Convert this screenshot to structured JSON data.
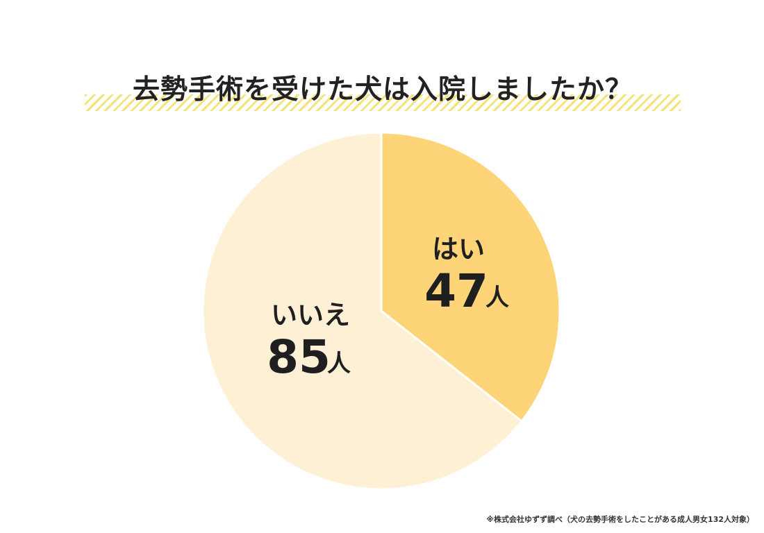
{
  "chart_data": {
    "type": "pie",
    "title": "去勢手術を受けた犬は入院しましたか？",
    "slices": [
      {
        "label": "はい",
        "value": 47,
        "unit": "人",
        "color": "#fed478"
      },
      {
        "label": "いいえ",
        "value": 85,
        "unit": "人",
        "color": "#fef0d5"
      }
    ]
  },
  "footnote": "※株式会社ゆずず調べ（犬の去勢手術をしたことがある成人男女132人対象）"
}
